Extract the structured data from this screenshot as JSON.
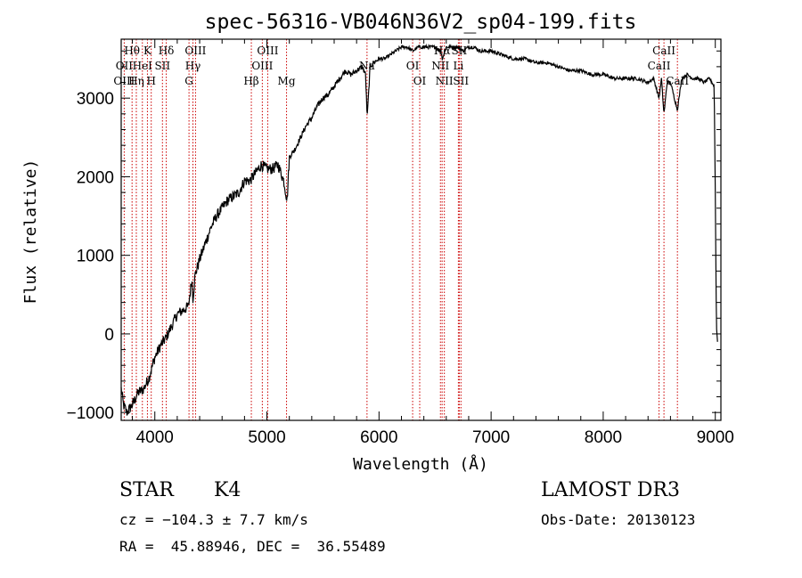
{
  "chart_data": {
    "type": "line",
    "title": "spec-56316-VB046N36V2_sp04-199.fits",
    "xlabel": "Wavelength (Å)",
    "ylabel": "Flux (relative)",
    "xlim": [
      3700,
      9050
    ],
    "ylim": [
      -1100,
      3750
    ],
    "xticks": [
      4000,
      5000,
      6000,
      7000,
      8000,
      9000
    ],
    "yticks": [
      -1000,
      0,
      1000,
      2000,
      3000
    ],
    "spectrum": {
      "name": "flux",
      "x": [
        3700,
        3720,
        3750,
        3800,
        3850,
        3900,
        3950,
        4000,
        4050,
        4100,
        4150,
        4200,
        4250,
        4300,
        4330,
        4340,
        4360,
        4400,
        4450,
        4500,
        4550,
        4600,
        4650,
        4700,
        4750,
        4800,
        4850,
        4900,
        4950,
        5000,
        5050,
        5100,
        5150,
        5180,
        5200,
        5250,
        5300,
        5350,
        5400,
        5450,
        5500,
        5550,
        5600,
        5650,
        5700,
        5750,
        5800,
        5850,
        5880,
        5895,
        5920,
        5950,
        6000,
        6050,
        6100,
        6150,
        6200,
        6250,
        6300,
        6350,
        6400,
        6450,
        6500,
        6550,
        6565,
        6600,
        6650,
        6700,
        6750,
        6800,
        6850,
        6900,
        6950,
        7000,
        7100,
        7200,
        7300,
        7400,
        7500,
        7600,
        7700,
        7800,
        7900,
        8000,
        8100,
        8200,
        8300,
        8400,
        8450,
        8498,
        8520,
        8542,
        8570,
        8600,
        8662,
        8700,
        8750,
        8800,
        8850,
        8900,
        8950,
        8990,
        9000,
        9010,
        9020
      ],
      "y": [
        -700,
        -900,
        -1000,
        -900,
        -750,
        -700,
        -550,
        -300,
        -150,
        -50,
        100,
        250,
        300,
        350,
        700,
        450,
        750,
        950,
        1150,
        1350,
        1500,
        1600,
        1700,
        1750,
        1800,
        1950,
        1950,
        2050,
        2150,
        2100,
        2100,
        2150,
        1950,
        1700,
        2250,
        2350,
        2500,
        2650,
        2750,
        2900,
        3000,
        3050,
        3150,
        3250,
        3350,
        3300,
        3350,
        3400,
        3300,
        2750,
        3400,
        3450,
        3500,
        3500,
        3550,
        3600,
        3650,
        3650,
        3600,
        3650,
        3650,
        3650,
        3650,
        3600,
        3500,
        3650,
        3650,
        3650,
        3600,
        3650,
        3650,
        3600,
        3600,
        3600,
        3550,
        3500,
        3500,
        3450,
        3450,
        3400,
        3350,
        3350,
        3300,
        3300,
        3250,
        3250,
        3250,
        3200,
        3250,
        3000,
        3250,
        2800,
        3200,
        3200,
        2850,
        3250,
        3300,
        3250,
        3250,
        3200,
        3250,
        3150,
        1800,
        100,
        -100
      ]
    },
    "spectral_lines": [
      {
        "label": "Hθ",
        "wavelength": 3797,
        "row": 1
      },
      {
        "label": "OII",
        "wavelength": 3727,
        "row": 2
      },
      {
        "label": "OIII",
        "wavelength": 3727,
        "row": 3
      },
      {
        "label": "K",
        "wavelength": 3934,
        "row": 1
      },
      {
        "label": "HeI",
        "wavelength": 3889,
        "row": 2
      },
      {
        "label": "Hη",
        "wavelength": 3835,
        "row": 3
      },
      {
        "label": "SII",
        "wavelength": 4068,
        "row": 2
      },
      {
        "label": "H",
        "wavelength": 3968,
        "row": 3
      },
      {
        "label": "Hδ",
        "wavelength": 4102,
        "row": 1
      },
      {
        "label": "OIII",
        "wavelength": 4363,
        "row": 1
      },
      {
        "label": "Hγ",
        "wavelength": 4340,
        "row": 2
      },
      {
        "label": "G",
        "wavelength": 4305,
        "row": 3
      },
      {
        "label": "OIII",
        "wavelength": 5007,
        "row": 1
      },
      {
        "label": "OIII",
        "wavelength": 4959,
        "row": 2
      },
      {
        "label": "Hβ",
        "wavelength": 4861,
        "row": 3
      },
      {
        "label": "Mg",
        "wavelength": 5175,
        "row": 3
      },
      {
        "label": "Na",
        "wavelength": 5893,
        "row": 2
      },
      {
        "label": "OI",
        "wavelength": 6300,
        "row": 2
      },
      {
        "label": "OI",
        "wavelength": 6363,
        "row": 3
      },
      {
        "label": "NII",
        "wavelength": 6548,
        "row": 2
      },
      {
        "label": "NII",
        "wavelength": 6583,
        "row": 3
      },
      {
        "label": "Hα",
        "wavelength": 6563,
        "row": 1
      },
      {
        "label": "SII",
        "wavelength": 6716,
        "row": 1
      },
      {
        "label": "Li",
        "wavelength": 6708,
        "row": 2
      },
      {
        "label": "SII",
        "wavelength": 6731,
        "row": 3
      },
      {
        "label": "CaII",
        "wavelength": 8542,
        "row": 1
      },
      {
        "label": "CaII",
        "wavelength": 8498,
        "row": 2
      },
      {
        "label": "CaII",
        "wavelength": 8662,
        "row": 3
      }
    ]
  },
  "info": {
    "class": "STAR",
    "subclass": "K4",
    "survey": "LAMOST DR3",
    "cz": "cz = −104.3 ± 7.7 km/s",
    "obs_date": "Obs-Date: 20130123",
    "coords": "RA =  45.88946, DEC =  36.55489"
  }
}
